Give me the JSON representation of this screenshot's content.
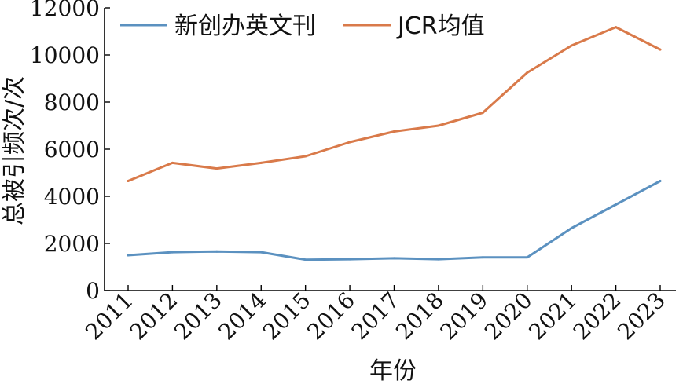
{
  "chart_data": {
    "type": "line",
    "categories": [
      "2011",
      "2012",
      "2013",
      "2014",
      "2015",
      "2016",
      "2017",
      "2018",
      "2019",
      "2020",
      "2021",
      "2022",
      "2023"
    ],
    "series": [
      {
        "name": "新创办英文刊",
        "color": "#5b91c0",
        "values": [
          1500,
          1630,
          1660,
          1630,
          1310,
          1330,
          1370,
          1330,
          1410,
          1410,
          2650,
          3650,
          4650
        ]
      },
      {
        "name": "JCR均值",
        "color": "#d97a4a",
        "values": [
          4650,
          5420,
          5180,
          5420,
          5700,
          6300,
          6750,
          7000,
          7550,
          9250,
          10400,
          11180,
          10230
        ]
      }
    ],
    "xlabel": "年份",
    "ylabel": "总被引频次/次",
    "ylim": [
      0,
      12000
    ],
    "yticks": [
      0,
      2000,
      4000,
      6000,
      8000,
      10000,
      12000
    ],
    "grid": false,
    "legend": "top"
  }
}
